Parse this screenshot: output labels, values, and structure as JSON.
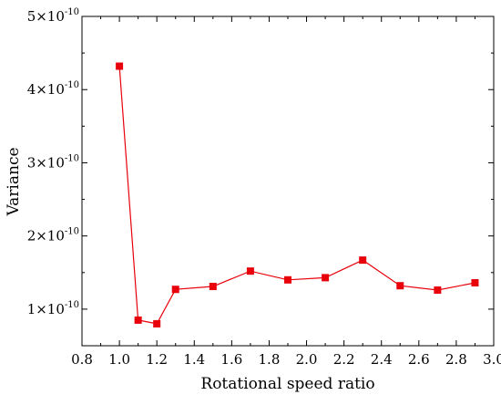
{
  "chart_data": {
    "type": "line",
    "xlabel": "Rotational speed ratio",
    "ylabel": "Variance",
    "xlim": [
      0.8,
      3.0
    ],
    "ylim": [
      5e-11,
      5e-10
    ],
    "x_ticks": [
      {
        "value": 0.8,
        "label": "0.8"
      },
      {
        "value": 1.0,
        "label": "1.0"
      },
      {
        "value": 1.2,
        "label": "1.2"
      },
      {
        "value": 1.4,
        "label": "1.4"
      },
      {
        "value": 1.6,
        "label": "1.6"
      },
      {
        "value": 1.8,
        "label": "1.8"
      },
      {
        "value": 2.0,
        "label": "2.0"
      },
      {
        "value": 2.2,
        "label": "2.2"
      },
      {
        "value": 2.4,
        "label": "2.4"
      },
      {
        "value": 2.6,
        "label": "2.6"
      },
      {
        "value": 2.8,
        "label": "2.8"
      },
      {
        "value": 3.0,
        "label": "3.0"
      }
    ],
    "y_ticks": [
      {
        "value": 1e-10,
        "mantissa": "1",
        "times": "×",
        "base": "10",
        "exp": "-10"
      },
      {
        "value": 2e-10,
        "mantissa": "2",
        "times": "×",
        "base": "10",
        "exp": "-10"
      },
      {
        "value": 3e-10,
        "mantissa": "3",
        "times": "×",
        "base": "10",
        "exp": "-10"
      },
      {
        "value": 4e-10,
        "mantissa": "4",
        "times": "×",
        "base": "10",
        "exp": "-10"
      },
      {
        "value": 5e-10,
        "mantissa": "5",
        "times": "×",
        "base": "10",
        "exp": "-10"
      }
    ],
    "series": [
      {
        "color": "#e8000b",
        "marker": "square",
        "x": [
          1.0,
          1.1,
          1.2,
          1.3,
          1.5,
          1.7,
          1.9,
          2.1,
          2.3,
          2.5,
          2.7,
          2.9
        ],
        "y": [
          4.32e-10,
          8.5e-11,
          8e-11,
          1.27e-10,
          1.31e-10,
          1.52e-10,
          1.4e-10,
          1.43e-10,
          1.67e-10,
          1.32e-10,
          1.26e-10,
          1.36e-10
        ]
      }
    ],
    "grid": false,
    "legend": "none"
  }
}
